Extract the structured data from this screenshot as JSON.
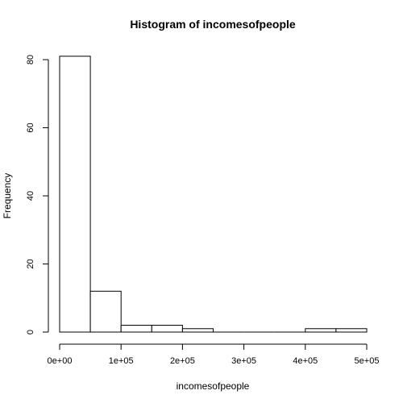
{
  "chart_data": {
    "type": "bar",
    "title": "Histogram of incomesofpeople",
    "xlabel": "incomesofpeople",
    "ylabel": "Frequency",
    "bins": [
      {
        "start": 0,
        "end": 50000,
        "count": 81
      },
      {
        "start": 50000,
        "end": 100000,
        "count": 12
      },
      {
        "start": 100000,
        "end": 150000,
        "count": 2
      },
      {
        "start": 150000,
        "end": 200000,
        "count": 2
      },
      {
        "start": 200000,
        "end": 250000,
        "count": 1
      },
      {
        "start": 250000,
        "end": 300000,
        "count": 0
      },
      {
        "start": 300000,
        "end": 350000,
        "count": 0
      },
      {
        "start": 350000,
        "end": 400000,
        "count": 0
      },
      {
        "start": 400000,
        "end": 450000,
        "count": 1
      },
      {
        "start": 450000,
        "end": 500000,
        "count": 1
      }
    ],
    "xlim": [
      0,
      500000
    ],
    "ylim": [
      0,
      80
    ],
    "x_ticks": [
      0,
      100000,
      200000,
      300000,
      400000,
      500000
    ],
    "x_tick_labels": [
      "0e+00",
      "1e+05",
      "2e+05",
      "3e+05",
      "4e+05",
      "5e+05"
    ],
    "y_ticks": [
      0,
      20,
      40,
      60,
      80
    ],
    "y_tick_labels": [
      "0",
      "20",
      "40",
      "60",
      "80"
    ],
    "bar_fill": "#ffffff",
    "bar_stroke": "#000000",
    "grid": false
  }
}
